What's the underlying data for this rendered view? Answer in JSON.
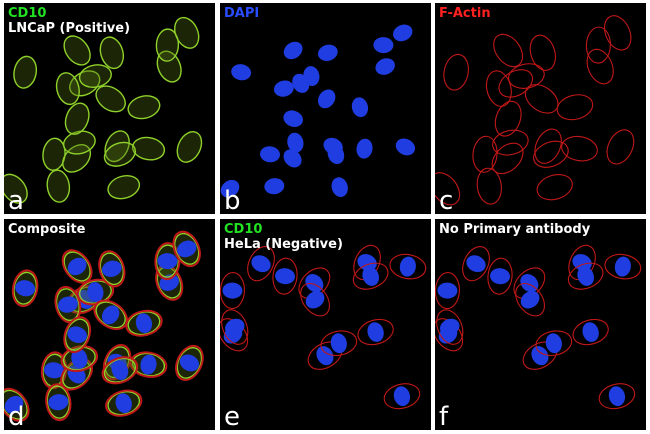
{
  "panels": [
    {
      "letter": "a",
      "lines": [
        {
          "text": "CD10",
          "color": "#22e022"
        },
        {
          "text": "LNCaP (Positive)",
          "color": "#ffffff"
        }
      ],
      "stain": "green"
    },
    {
      "letter": "b",
      "lines": [
        {
          "text": "DAPI",
          "color": "#2a4cff"
        }
      ],
      "stain": "blue"
    },
    {
      "letter": "c",
      "lines": [
        {
          "text": "F-Actin",
          "color": "#ff2020"
        }
      ],
      "stain": "red"
    },
    {
      "letter": "d",
      "lines": [
        {
          "text": "Composite",
          "color": "#ffffff"
        }
      ],
      "stain": "composite"
    },
    {
      "letter": "e",
      "lines": [
        {
          "text": "CD10",
          "color": "#22e022"
        },
        {
          "text": "HeLa (Negative)",
          "color": "#ffffff"
        }
      ],
      "stain": "hela"
    },
    {
      "letter": "f",
      "lines": [
        {
          "text": "No Primary antibody",
          "color": "#ffffff"
        }
      ],
      "stain": "noprimary"
    }
  ]
}
